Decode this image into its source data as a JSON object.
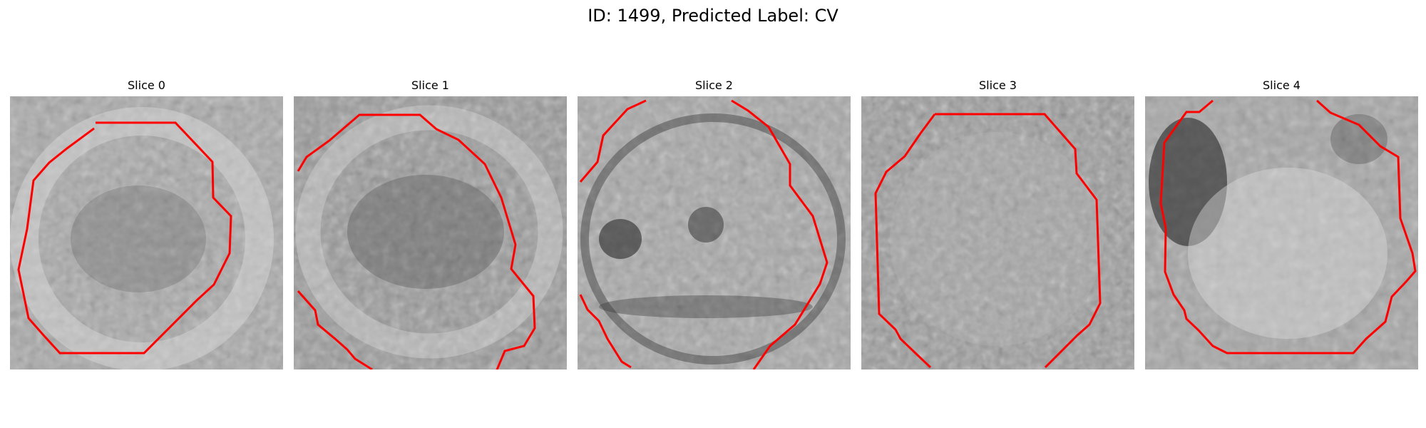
{
  "figure": {
    "title": "ID: 1499, Predicted Label: CV"
  },
  "panels": [
    {
      "title": "Slice 0",
      "outline_color": "#ff0000"
    },
    {
      "title": "Slice 1",
      "outline_color": "#ff0000"
    },
    {
      "title": "Slice 2",
      "outline_color": "#ff0000"
    },
    {
      "title": "Slice 3",
      "outline_color": "#ff0000"
    },
    {
      "title": "Slice 4",
      "outline_color": "#ff0000"
    }
  ]
}
